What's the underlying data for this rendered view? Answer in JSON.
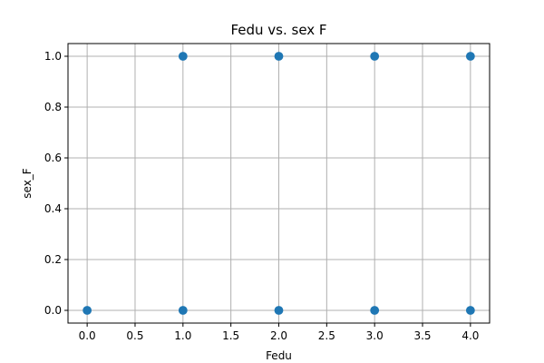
{
  "chart_data": {
    "type": "scatter",
    "title": "Fedu vs. sex F",
    "xlabel": "Fedu",
    "ylabel": "sex_F",
    "xlim": [
      -0.2,
      4.2
    ],
    "ylim": [
      -0.05,
      1.05
    ],
    "xticks": [
      0.0,
      0.5,
      1.0,
      1.5,
      2.0,
      2.5,
      3.0,
      3.5,
      4.0
    ],
    "xtick_labels": [
      "0.0",
      "0.5",
      "1.0",
      "1.5",
      "2.0",
      "2.5",
      "3.0",
      "3.5",
      "4.0"
    ],
    "yticks": [
      0.0,
      0.2,
      0.4,
      0.6,
      0.8,
      1.0
    ],
    "ytick_labels": [
      "0.0",
      "0.2",
      "0.4",
      "0.6",
      "0.8",
      "1.0"
    ],
    "grid": true,
    "marker_color": "#1f77b4",
    "points": [
      {
        "x": 0,
        "y": 0
      },
      {
        "x": 1,
        "y": 0
      },
      {
        "x": 1,
        "y": 1
      },
      {
        "x": 2,
        "y": 0
      },
      {
        "x": 2,
        "y": 1
      },
      {
        "x": 3,
        "y": 0
      },
      {
        "x": 3,
        "y": 1
      },
      {
        "x": 4,
        "y": 0
      },
      {
        "x": 4,
        "y": 1
      }
    ]
  }
}
